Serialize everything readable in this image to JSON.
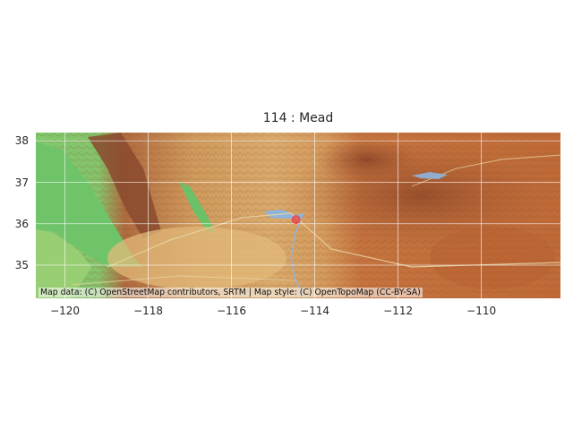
{
  "title": "114 : Mead",
  "map": {
    "extent": {
      "lon_min": -120.7,
      "lon_max": -108.1,
      "lat_min": 34.2,
      "lat_max": 38.2
    },
    "grid": true,
    "basemap": "OpenTopoMap",
    "attribution": "Map data: (C) OpenStreetMap contributors, SRTM | Map style: (C) OpenTopoMap (CC-BY-SA)",
    "marker": {
      "lon": -114.45,
      "lat": 36.1,
      "color": "#e8434a"
    },
    "colors": {
      "lowland": "#6fc46a",
      "desert": "#d8a86a",
      "mountain": "#8a4a2e",
      "plateau": "#c0733f",
      "water": "#8fb4dc"
    }
  },
  "axes": {
    "x_ticks": [
      "−120",
      "−118",
      "−116",
      "−114",
      "−112",
      "−110"
    ],
    "x_values": [
      -120,
      -118,
      -116,
      -114,
      -112,
      -110
    ],
    "y_ticks": [
      "38",
      "37",
      "36",
      "35"
    ],
    "y_values": [
      38,
      37,
      36,
      35
    ]
  }
}
